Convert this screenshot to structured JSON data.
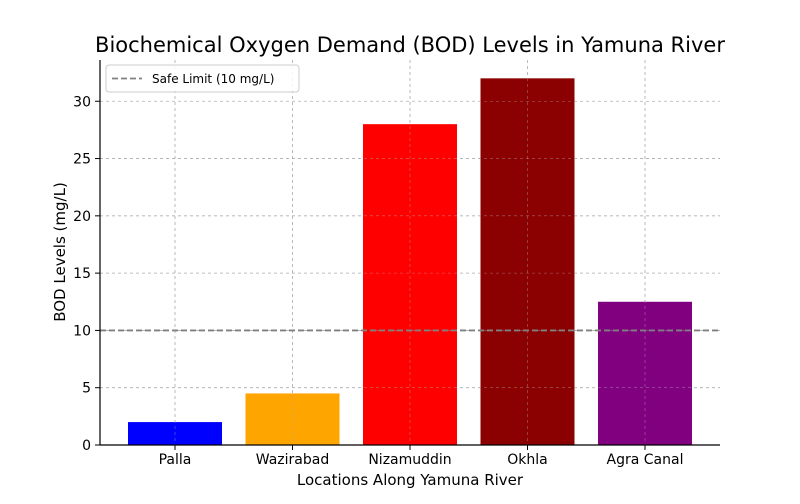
{
  "chart_data": {
    "type": "bar",
    "title": "Biochemical Oxygen Demand (BOD) Levels in Yamuna River",
    "xlabel": "Locations Along Yamuna River",
    "ylabel": "BOD Levels (mg/L)",
    "categories": [
      "Palla",
      "Wazirabad",
      "Nizamuddin",
      "Okhla",
      "Agra Canal"
    ],
    "values": [
      2,
      4.5,
      28,
      32,
      12.5
    ],
    "colors": [
      "#0000ff",
      "#ffa500",
      "#ff0000",
      "#8b0000",
      "#800080"
    ],
    "ylim": [
      0,
      33.6
    ],
    "yticks": [
      "0",
      "5",
      "10",
      "15",
      "20",
      "25",
      "30"
    ],
    "grid": true,
    "reference_line": {
      "value": 10,
      "label": "Safe Limit (10 mg/L)",
      "color": "#808080",
      "style": "dashed"
    },
    "legend_position": "top-left"
  }
}
